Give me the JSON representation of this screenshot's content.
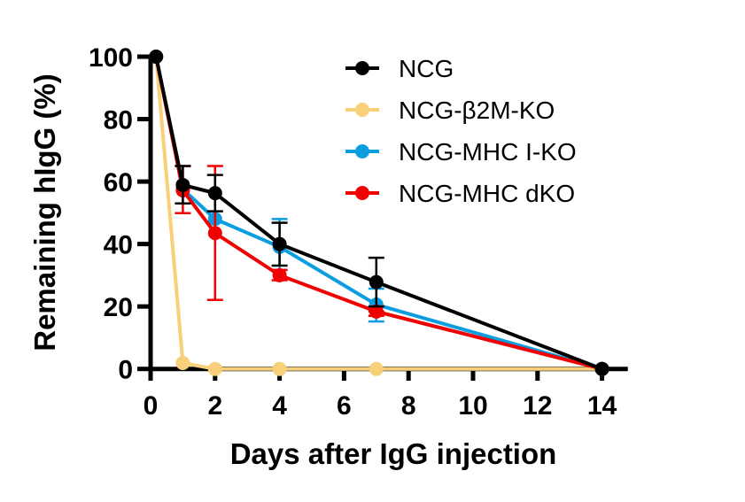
{
  "chart_data": {
    "type": "line",
    "title": "",
    "xlabel": "Days after IgG injection",
    "ylabel": "Remaining hIgG (%)",
    "xlim": [
      0,
      14.8
    ],
    "ylim": [
      0,
      100
    ],
    "xticks": [
      0,
      2,
      4,
      6,
      8,
      10,
      12,
      14
    ],
    "yticks": [
      0,
      20,
      40,
      60,
      80,
      100
    ],
    "legend_position": "top-right",
    "series": [
      {
        "name": "NCG",
        "color": "#000000",
        "x": [
          0.17,
          1,
          2,
          4,
          7,
          14
        ],
        "y": [
          100,
          58.9,
          56.3,
          40.0,
          27.8,
          0
        ],
        "err_hi": [
          null,
          65,
          62.1,
          46.8,
          35.6,
          null
        ],
        "err_lo": [
          null,
          53,
          50.5,
          33.1,
          20,
          null
        ]
      },
      {
        "name": "NCG-β2M-KO",
        "color": "#F9D07A",
        "x": [
          0.17,
          1,
          2,
          4,
          7,
          14
        ],
        "y": [
          100,
          1.9,
          0,
          0,
          0,
          0
        ],
        "err_hi": [
          null,
          null,
          null,
          null,
          null,
          null
        ],
        "err_lo": [
          null,
          null,
          null,
          null,
          null,
          null
        ]
      },
      {
        "name": "NCG-MHC I-KO",
        "color": "#0A9EE0",
        "x": [
          0.17,
          1,
          2,
          4,
          7,
          14
        ],
        "y": [
          100,
          57.6,
          48,
          39.1,
          20.6,
          0
        ],
        "err_hi": [
          null,
          null,
          null,
          48,
          25.7,
          null
        ],
        "err_lo": [
          null,
          null,
          null,
          31.7,
          15.2,
          null
        ]
      },
      {
        "name": "NCG-MHC dKO",
        "color": "#F00000",
        "x": [
          0.17,
          1,
          2,
          4,
          7,
          14
        ],
        "y": [
          100,
          57.2,
          43.5,
          30,
          18.4,
          0
        ],
        "err_hi": [
          null,
          65,
          65,
          31.7,
          null,
          null
        ],
        "err_lo": [
          null,
          49.9,
          22.1,
          28.4,
          17,
          null
        ]
      }
    ]
  }
}
